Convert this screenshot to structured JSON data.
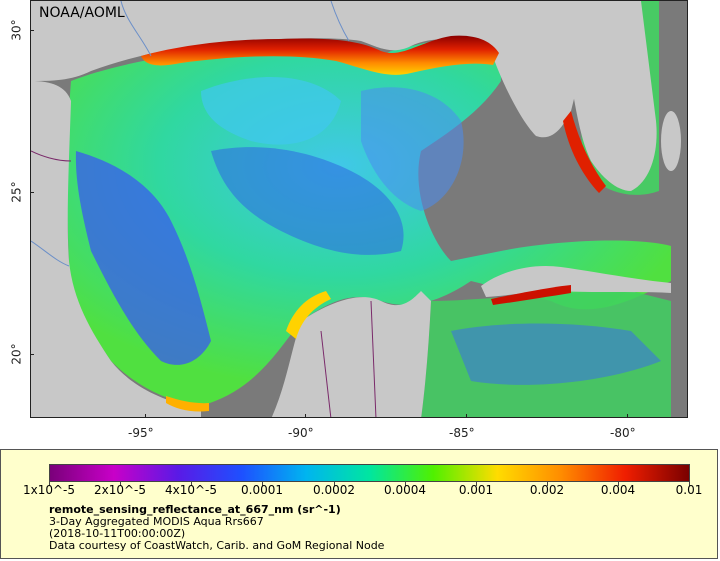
{
  "map": {
    "credit": "NOAA/AOML",
    "x_ticks": [
      "-95°",
      "-90°",
      "-85°",
      "-80°"
    ],
    "y_ticks": [
      "30°",
      "25°",
      "20°"
    ]
  },
  "legend": {
    "ticks": [
      "1x10^-5",
      "2x10^-5",
      "4x10^-5",
      "0.0001",
      "0.0002",
      "0.0004",
      "0.001",
      "0.002",
      "0.004",
      "0.01"
    ],
    "variable": "remote_sensing_reflectance_at_667_nm (sr^-1)",
    "line1": "3-Day Aggregated MODIS Aqua Rrs667",
    "line2": "(2018-10-11T00:00:00Z)",
    "line3": "Data courtesy of CoastWatch, Carib. and GoM Regional Node"
  },
  "colors": {
    "land": "#c8c8c8",
    "nodata": "#7a7a7a",
    "legend_bg": "#ffffcc"
  }
}
